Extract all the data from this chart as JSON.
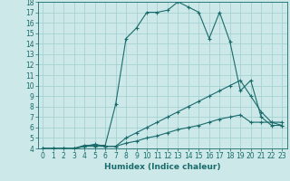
{
  "xlabel": "Humidex (Indice chaleur)",
  "bg_color": "#cce8e8",
  "line_color": "#1a6b6b",
  "grid_color": "#9fcfcf",
  "xlim": [
    -0.5,
    23.5
  ],
  "ylim": [
    4,
    18
  ],
  "xticks": [
    0,
    1,
    2,
    3,
    4,
    5,
    6,
    7,
    8,
    9,
    10,
    11,
    12,
    13,
    14,
    15,
    16,
    17,
    18,
    19,
    20,
    21,
    22,
    23
  ],
  "yticks": [
    4,
    5,
    6,
    7,
    8,
    9,
    10,
    11,
    12,
    13,
    14,
    15,
    16,
    17,
    18
  ],
  "line1_x": [
    0,
    1,
    2,
    3,
    4,
    5,
    6,
    7,
    8,
    9,
    10,
    11,
    12,
    13,
    14,
    15,
    16,
    17,
    18,
    19,
    20,
    21,
    22,
    23
  ],
  "line1_y": [
    4,
    4,
    4,
    4,
    4.3,
    4.3,
    4.3,
    8.2,
    14.5,
    15.5,
    17.0,
    17.0,
    17.2,
    18.0,
    17.5,
    17.0,
    14.5,
    17.0,
    14.2,
    9.5,
    10.5,
    7.0,
    6.2,
    6.2
  ],
  "line2_x": [
    0,
    1,
    2,
    3,
    4,
    5,
    6,
    7,
    8,
    9,
    10,
    11,
    12,
    13,
    14,
    15,
    16,
    17,
    18,
    19,
    20,
    21,
    22,
    23
  ],
  "line2_y": [
    4,
    4,
    4,
    4,
    4.2,
    4.4,
    4.2,
    4.2,
    5.0,
    5.5,
    6.0,
    6.5,
    7.0,
    7.5,
    8.0,
    8.5,
    9.0,
    9.5,
    10.0,
    10.5,
    9.0,
    7.5,
    6.5,
    6.2
  ],
  "line3_x": [
    0,
    1,
    2,
    3,
    4,
    5,
    6,
    7,
    8,
    9,
    10,
    11,
    12,
    13,
    14,
    15,
    16,
    17,
    18,
    19,
    20,
    21,
    22,
    23
  ],
  "line3_y": [
    4,
    4,
    4,
    4,
    4.2,
    4.2,
    4.2,
    4.2,
    4.5,
    4.7,
    5.0,
    5.2,
    5.5,
    5.8,
    6.0,
    6.2,
    6.5,
    6.8,
    7.0,
    7.2,
    6.5,
    6.5,
    6.5,
    6.5
  ],
  "tick_fontsize": 5.5,
  "xlabel_fontsize": 6.5
}
